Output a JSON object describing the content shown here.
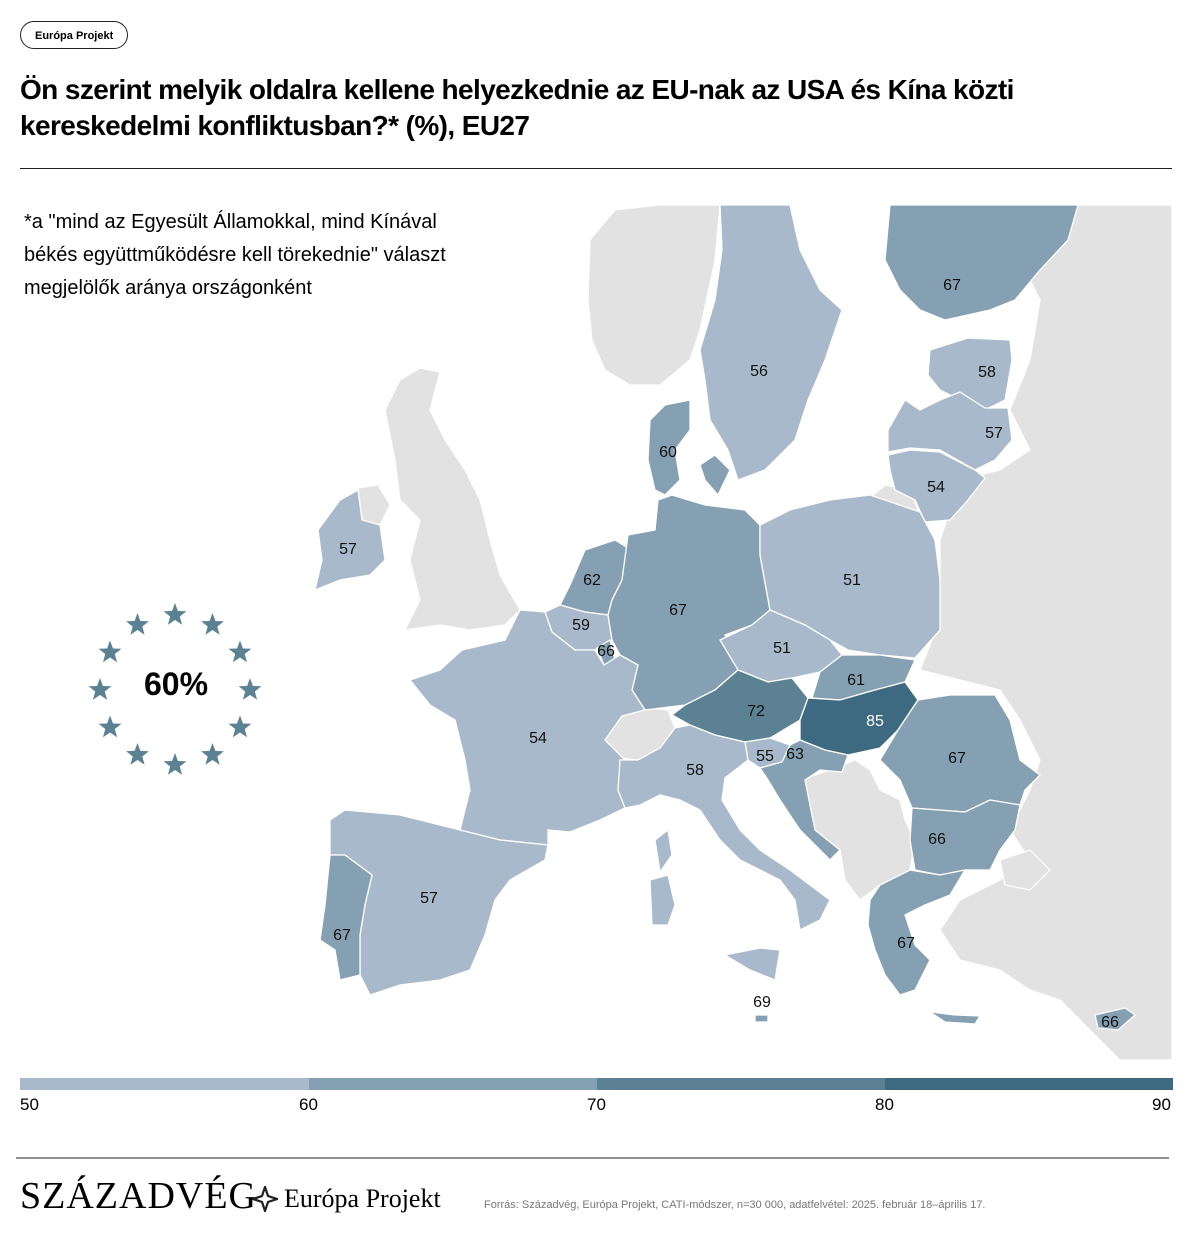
{
  "badge": "Európa Projekt",
  "title": "Ön szerint melyik oldalra kellene helyezkednie az EU-nak az USA és Kína közti kereskedelmi konfliktusban?* (%), EU27",
  "note": "*a \"mind az Egyesült Államokkal, mind Kínával békés együttműködésre kell törekednie\" választ megjelölők aránya országonként",
  "eu_average": "60%",
  "colors": {
    "bin_50_60": "#a7b9cb",
    "bin_60_70": "#86a0b3",
    "bin_70_80": "#5b8193",
    "bin_80_90": "#3d6a80",
    "non_eu": "#e2e2e2",
    "star": "#5b8193"
  },
  "countries": [
    {
      "name": "Finnország",
      "value": "67"
    },
    {
      "name": "Svédország",
      "value": "56"
    },
    {
      "name": "Észtország",
      "value": "58"
    },
    {
      "name": "Lettország",
      "value": "57"
    },
    {
      "name": "Litvánia",
      "value": "54"
    },
    {
      "name": "Dánia",
      "value": "60"
    },
    {
      "name": "Írország",
      "value": "57"
    },
    {
      "name": "Hollandia",
      "value": "62"
    },
    {
      "name": "Belgium",
      "value": "59"
    },
    {
      "name": "Luxemburg",
      "value": "66"
    },
    {
      "name": "Németország",
      "value": "67"
    },
    {
      "name": "Lengyelország",
      "value": "51"
    },
    {
      "name": "Csehország",
      "value": "51"
    },
    {
      "name": "Szlovákia",
      "value": "61"
    },
    {
      "name": "Ausztria",
      "value": "72"
    },
    {
      "name": "Magyarország",
      "value": "85"
    },
    {
      "name": "Románia",
      "value": "67"
    },
    {
      "name": "Franciaország",
      "value": "54"
    },
    {
      "name": "Szlovénia",
      "value": "55"
    },
    {
      "name": "Horvátország",
      "value": "63"
    },
    {
      "name": "Olaszország",
      "value": "58"
    },
    {
      "name": "Bulgária",
      "value": "66"
    },
    {
      "name": "Spanyolország",
      "value": "57"
    },
    {
      "name": "Portugália",
      "value": "67"
    },
    {
      "name": "Görögország",
      "value": "67"
    },
    {
      "name": "Málta",
      "value": "69"
    },
    {
      "name": "Ciprus",
      "value": "66"
    }
  ],
  "scale": {
    "ticks": [
      "50",
      "60",
      "70",
      "80",
      "90"
    ]
  },
  "footer": {
    "brand1": "SZÁZADVÉG",
    "brand2": "Európa Projekt",
    "source": "Forrás: Századvég, Európa Projekt, CATI-módszer, n=30 000, adatfelvétel: 2025. február 18–április 17."
  }
}
